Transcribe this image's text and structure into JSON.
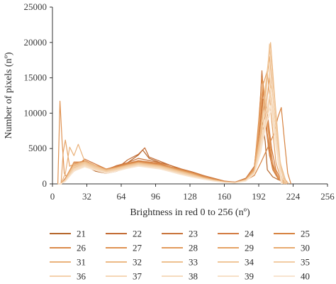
{
  "chart_data": {
    "type": "line",
    "xlabel": "Brightness in red 0 to 256 (nº)",
    "ylabel": "Number of pixels (nº)",
    "xlim": [
      0,
      256
    ],
    "ylim": [
      0,
      25000
    ],
    "xticks": [
      0,
      32,
      64,
      96,
      128,
      160,
      192,
      224,
      256
    ],
    "yticks": [
      0,
      5000,
      10000,
      15000,
      20000,
      25000
    ],
    "grid": false,
    "legend_position": "bottom",
    "series": [
      {
        "name": "21",
        "color": "#b5652a",
        "x": [
          5,
          8,
          12,
          20,
          30,
          40,
          50,
          60,
          70,
          80,
          84,
          90,
          100,
          110,
          120,
          130,
          140,
          150,
          160,
          170,
          180,
          188,
          192,
          195,
          198,
          200,
          205,
          210,
          215,
          218
        ],
        "values": [
          0,
          0,
          500,
          1800,
          2600,
          1800,
          1500,
          1800,
          3000,
          4100,
          4800,
          3600,
          3000,
          2600,
          2000,
          1600,
          1100,
          600,
          300,
          200,
          600,
          1500,
          4000,
          9000,
          6000,
          2000,
          1000,
          600,
          300,
          0
        ]
      },
      {
        "name": "22",
        "color": "#c26a32",
        "x": [
          5,
          8,
          12,
          20,
          30,
          40,
          50,
          60,
          70,
          80,
          86,
          90,
          100,
          110,
          120,
          130,
          140,
          150,
          160,
          170,
          180,
          188,
          192,
          196,
          200,
          204,
          208,
          212,
          218
        ],
        "values": [
          0,
          0,
          400,
          2600,
          2800,
          2200,
          1800,
          2200,
          3400,
          4200,
          5100,
          3800,
          3200,
          2600,
          2100,
          1700,
          1200,
          700,
          350,
          250,
          700,
          2000,
          6000,
          12000,
          7000,
          3000,
          1200,
          500,
          0
        ]
      },
      {
        "name": "23",
        "color": "#c8733a",
        "x": [
          5,
          8,
          12,
          20,
          30,
          40,
          50,
          60,
          70,
          80,
          90,
          100,
          110,
          120,
          130,
          140,
          150,
          160,
          170,
          180,
          188,
          192,
          195,
          198,
          202,
          206,
          210,
          214,
          218
        ],
        "values": [
          0,
          0,
          800,
          3000,
          3200,
          2400,
          2000,
          2600,
          3000,
          3600,
          3300,
          3000,
          2600,
          2100,
          1700,
          1200,
          800,
          400,
          250,
          800,
          2500,
          8000,
          16000,
          9000,
          4000,
          2000,
          900,
          400,
          0
        ]
      },
      {
        "name": "24",
        "color": "#d27a40",
        "x": [
          5,
          8,
          12,
          20,
          30,
          40,
          50,
          60,
          70,
          80,
          90,
          100,
          110,
          120,
          130,
          140,
          150,
          160,
          170,
          180,
          188,
          192,
          196,
          200,
          204,
          208,
          212,
          218
        ],
        "values": [
          0,
          0,
          600,
          2200,
          3500,
          2800,
          2100,
          2500,
          2900,
          3200,
          3000,
          2800,
          2400,
          2000,
          1600,
          1100,
          700,
          350,
          200,
          600,
          1800,
          7000,
          13000,
          10000,
          5000,
          2000,
          800,
          0
        ]
      },
      {
        "name": "25",
        "color": "#d6823f",
        "x": [
          5,
          8,
          12,
          20,
          30,
          40,
          50,
          60,
          70,
          80,
          90,
          100,
          110,
          120,
          130,
          140,
          150,
          160,
          170,
          180,
          188,
          194,
          200,
          206,
          210,
          213,
          216,
          219,
          222
        ],
        "values": [
          0,
          0,
          500,
          2400,
          3000,
          2500,
          2000,
          2300,
          2800,
          3100,
          2900,
          2700,
          2300,
          1900,
          1500,
          1000,
          650,
          300,
          180,
          500,
          1200,
          3000,
          5000,
          7000,
          9500,
          10800,
          6000,
          1500,
          0
        ]
      },
      {
        "name": "26",
        "color": "#db8a4a",
        "x": [
          5,
          8,
          12,
          20,
          30,
          40,
          50,
          60,
          70,
          80,
          90,
          100,
          110,
          120,
          130,
          140,
          150,
          160,
          170,
          180,
          188,
          192,
          195,
          198,
          201,
          205,
          210,
          216
        ],
        "values": [
          0,
          0,
          600,
          2800,
          3300,
          2600,
          2100,
          2400,
          2900,
          3300,
          3100,
          2900,
          2400,
          2000,
          1600,
          1100,
          700,
          350,
          220,
          700,
          2300,
          9000,
          15000,
          11000,
          5000,
          2000,
          700,
          0
        ]
      },
      {
        "name": "27",
        "color": "#df9252",
        "x": [
          5,
          7,
          9,
          11,
          14,
          20,
          30,
          40,
          50,
          60,
          70,
          80,
          90,
          100,
          110,
          120,
          130,
          140,
          150,
          160,
          170,
          180,
          188,
          193,
          197,
          201,
          205,
          210,
          216
        ],
        "values": [
          0,
          11700,
          6000,
          1500,
          800,
          2500,
          3000,
          2400,
          1900,
          2300,
          2700,
          3000,
          2800,
          2600,
          2200,
          1800,
          1400,
          900,
          550,
          280,
          180,
          600,
          2000,
          7000,
          12500,
          8000,
          3000,
          900,
          0
        ]
      },
      {
        "name": "28",
        "color": "#e29a5c",
        "x": [
          5,
          8,
          12,
          20,
          30,
          40,
          50,
          60,
          70,
          80,
          90,
          100,
          110,
          120,
          130,
          140,
          150,
          160,
          170,
          180,
          188,
          192,
          196,
          199,
          203,
          207,
          212,
          218
        ],
        "values": [
          0,
          0,
          700,
          3100,
          3100,
          2500,
          2000,
          2300,
          2700,
          3100,
          2900,
          2700,
          2300,
          1900,
          1500,
          1000,
          650,
          320,
          200,
          650,
          2200,
          8500,
          14500,
          10000,
          4500,
          1800,
          600,
          0
        ]
      },
      {
        "name": "29",
        "color": "#e5a265",
        "x": [
          5,
          8,
          10,
          12,
          16,
          20,
          30,
          40,
          50,
          60,
          70,
          80,
          90,
          100,
          110,
          120,
          130,
          140,
          150,
          160,
          170,
          180,
          188,
          192,
          196,
          200,
          204,
          208,
          214
        ],
        "values": [
          0,
          0,
          4500,
          6200,
          2500,
          2800,
          3000,
          2400,
          1900,
          2200,
          2600,
          2900,
          2700,
          2500,
          2100,
          1700,
          1300,
          850,
          520,
          260,
          170,
          600,
          2000,
          7500,
          14000,
          16000,
          9000,
          3000,
          0
        ]
      },
      {
        "name": "30",
        "color": "#e8aa70",
        "x": [
          5,
          8,
          12,
          20,
          30,
          40,
          50,
          60,
          70,
          80,
          90,
          100,
          110,
          120,
          130,
          140,
          150,
          160,
          170,
          180,
          188,
          193,
          198,
          202,
          206,
          210,
          215,
          220
        ],
        "values": [
          0,
          0,
          600,
          2600,
          3000,
          2400,
          1900,
          2200,
          2600,
          2900,
          2700,
          2500,
          2100,
          1700,
          1300,
          850,
          520,
          260,
          170,
          550,
          1800,
          6000,
          10000,
          15000,
          9000,
          3500,
          900,
          0
        ]
      },
      {
        "name": "31",
        "color": "#eab27b",
        "x": [
          5,
          8,
          12,
          16,
          20,
          24,
          30,
          40,
          50,
          60,
          70,
          80,
          90,
          100,
          110,
          120,
          130,
          140,
          150,
          160,
          170,
          180,
          188,
          194,
          198,
          202,
          206,
          211,
          216
        ],
        "values": [
          0,
          0,
          1500,
          5200,
          4000,
          5600,
          3200,
          2600,
          2000,
          2300,
          2700,
          3000,
          2800,
          2600,
          2200,
          1800,
          1400,
          900,
          550,
          280,
          180,
          600,
          1900,
          7000,
          13000,
          18000,
          11000,
          3500,
          0
        ]
      },
      {
        "name": "32",
        "color": "#ecb985",
        "x": [
          5,
          8,
          12,
          20,
          30,
          40,
          50,
          60,
          70,
          80,
          90,
          100,
          110,
          120,
          130,
          140,
          150,
          160,
          170,
          180,
          188,
          194,
          199,
          203,
          207,
          212,
          218
        ],
        "values": [
          0,
          0,
          500,
          2300,
          2900,
          2300,
          1800,
          2100,
          2500,
          2800,
          2600,
          2400,
          2000,
          1600,
          1200,
          800,
          480,
          240,
          160,
          500,
          1700,
          7500,
          14000,
          20000,
          12000,
          3000,
          0
        ]
      },
      {
        "name": "33",
        "color": "#eec08f",
        "x": [
          5,
          8,
          12,
          20,
          30,
          40,
          50,
          60,
          70,
          80,
          90,
          100,
          110,
          120,
          130,
          140,
          150,
          160,
          170,
          180,
          188,
          193,
          197,
          201,
          205,
          210,
          215
        ],
        "values": [
          0,
          0,
          600,
          2700,
          3100,
          2500,
          1900,
          2200,
          2600,
          2900,
          2700,
          2500,
          2100,
          1700,
          1300,
          850,
          500,
          250,
          170,
          550,
          1800,
          6500,
          12000,
          17500,
          10000,
          3000,
          0
        ]
      },
      {
        "name": "34",
        "color": "#f0c699",
        "x": [
          5,
          8,
          12,
          20,
          30,
          40,
          50,
          60,
          70,
          80,
          90,
          100,
          110,
          120,
          130,
          140,
          150,
          160,
          170,
          180,
          188,
          194,
          198,
          202,
          206,
          211,
          216
        ],
        "values": [
          0,
          0,
          550,
          2500,
          3000,
          2400,
          1850,
          2150,
          2550,
          2850,
          2650,
          2450,
          2050,
          1650,
          1250,
          820,
          490,
          245,
          165,
          520,
          1750,
          6000,
          11000,
          19800,
          13000,
          4000,
          0
        ]
      },
      {
        "name": "35",
        "color": "#f2cca3",
        "x": [
          5,
          8,
          12,
          20,
          30,
          40,
          50,
          60,
          70,
          80,
          90,
          100,
          110,
          120,
          130,
          140,
          150,
          160,
          170,
          180,
          188,
          194,
          199,
          204,
          208,
          212,
          217
        ],
        "values": [
          0,
          0,
          500,
          2400,
          2900,
          2300,
          1800,
          2100,
          2500,
          2800,
          2600,
          2400,
          2000,
          1600,
          1200,
          800,
          470,
          235,
          160,
          500,
          1650,
          5000,
          9000,
          14000,
          8000,
          2500,
          0
        ]
      },
      {
        "name": "36",
        "color": "#f4d1ac",
        "x": [
          5,
          8,
          12,
          20,
          30,
          40,
          50,
          60,
          70,
          80,
          90,
          100,
          110,
          120,
          130,
          140,
          150,
          160,
          170,
          180,
          188,
          193,
          198,
          203,
          208,
          213
        ],
        "values": [
          0,
          0,
          450,
          2200,
          2800,
          2200,
          1700,
          2000,
          2400,
          2700,
          2500,
          2300,
          1900,
          1500,
          1100,
          750,
          450,
          225,
          150,
          480,
          1600,
          5500,
          10000,
          12500,
          6000,
          0
        ]
      },
      {
        "name": "37",
        "color": "#f5d6b5",
        "x": [
          5,
          8,
          12,
          20,
          30,
          40,
          50,
          60,
          70,
          80,
          90,
          100,
          110,
          120,
          130,
          140,
          150,
          160,
          170,
          180,
          188,
          194,
          199,
          204,
          209,
          214
        ],
        "values": [
          0,
          0,
          400,
          2100,
          2700,
          2100,
          1650,
          1950,
          2350,
          2650,
          2450,
          2250,
          1850,
          1450,
          1050,
          720,
          430,
          215,
          145,
          460,
          1550,
          5000,
          9500,
          11500,
          5500,
          0
        ]
      },
      {
        "name": "38",
        "color": "#f6dbbe",
        "x": [
          5,
          8,
          12,
          20,
          30,
          40,
          50,
          60,
          70,
          80,
          90,
          100,
          110,
          120,
          130,
          140,
          150,
          160,
          170,
          180,
          188,
          193,
          198,
          203,
          208,
          213
        ],
        "values": [
          0,
          0,
          380,
          2000,
          2600,
          2000,
          1600,
          1900,
          2300,
          2600,
          2400,
          2200,
          1800,
          1400,
          1000,
          700,
          420,
          210,
          140,
          440,
          1500,
          4800,
          9000,
          13500,
          6500,
          0
        ]
      },
      {
        "name": "39",
        "color": "#f7e0c7",
        "x": [
          5,
          8,
          12,
          20,
          30,
          40,
          50,
          60,
          70,
          80,
          90,
          100,
          110,
          120,
          130,
          140,
          150,
          160,
          170,
          180,
          188,
          194,
          199,
          204,
          209,
          214
        ],
        "values": [
          0,
          0,
          360,
          1900,
          2500,
          1950,
          1550,
          1850,
          2250,
          2550,
          2350,
          2150,
          1750,
          1350,
          980,
          680,
          410,
          205,
          135,
          420,
          1450,
          4500,
          8500,
          10500,
          5000,
          0
        ]
      },
      {
        "name": "40",
        "color": "#f8e4cf",
        "x": [
          5,
          8,
          12,
          20,
          30,
          40,
          50,
          60,
          70,
          80,
          90,
          100,
          110,
          120,
          130,
          140,
          150,
          160,
          170,
          180,
          188,
          193,
          198,
          203,
          208,
          213
        ],
        "values": [
          0,
          0,
          340,
          1800,
          2400,
          1900,
          1500,
          1800,
          2200,
          2500,
          2300,
          2100,
          1700,
          1300,
          950,
          660,
          400,
          200,
          130,
          400,
          1400,
          4200,
          8000,
          11000,
          5200,
          0
        ]
      }
    ]
  }
}
